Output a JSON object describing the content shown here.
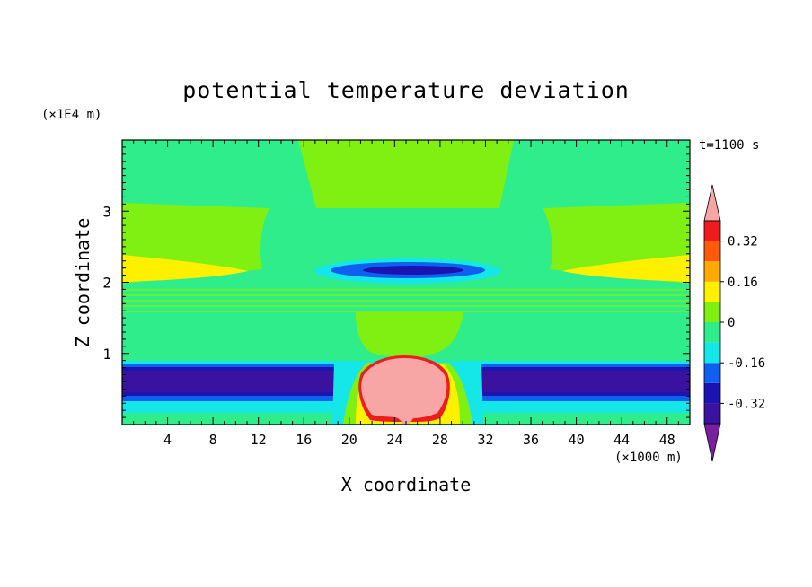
{
  "chart_data": {
    "type": "heatmap",
    "title": "potential temperature deviation",
    "xlabel": "X coordinate",
    "ylabel": "Z coordinate",
    "x_unit": "(×1000 m)",
    "y_unit": "(×1E4 m)",
    "time_label": "t=1100 s",
    "xlim": [
      0,
      50
    ],
    "ylim": [
      0,
      4
    ],
    "x_ticks": [
      4,
      8,
      12,
      16,
      20,
      24,
      28,
      32,
      36,
      40,
      44,
      48
    ],
    "y_ticks": [
      1,
      2,
      3
    ],
    "colorbar": {
      "levels": [
        -0.48,
        -0.4,
        -0.32,
        -0.24,
        -0.16,
        -0.08,
        0,
        0.08,
        0.16,
        0.24,
        0.32,
        0.4
      ],
      "colors": [
        "#7a1fa2",
        "#3a12a0",
        "#1c14b0",
        "#1060f0",
        "#15e6e8",
        "#2eed8a",
        "#80f012",
        "#fff000",
        "#ffaa00",
        "#ff5a0a",
        "#ee1c1c",
        "#f7a5a5"
      ],
      "tick_labels": [
        "0.32",
        "0.16",
        "0",
        "-0.16",
        "-0.32"
      ],
      "tick_values": [
        0.32,
        0.16,
        0,
        -0.16,
        -0.32
      ],
      "extend": "both"
    },
    "features": [
      {
        "name": "warm bubble",
        "x_center": 25,
        "z_center": 0.55,
        "value_max": 0.48
      },
      {
        "name": "cold layer",
        "z_range": [
          0.4,
          0.85
        ],
        "value": -0.36
      },
      {
        "name": "cold lens",
        "x_center": 25,
        "z_center": 2.15,
        "value": -0.36
      }
    ]
  }
}
